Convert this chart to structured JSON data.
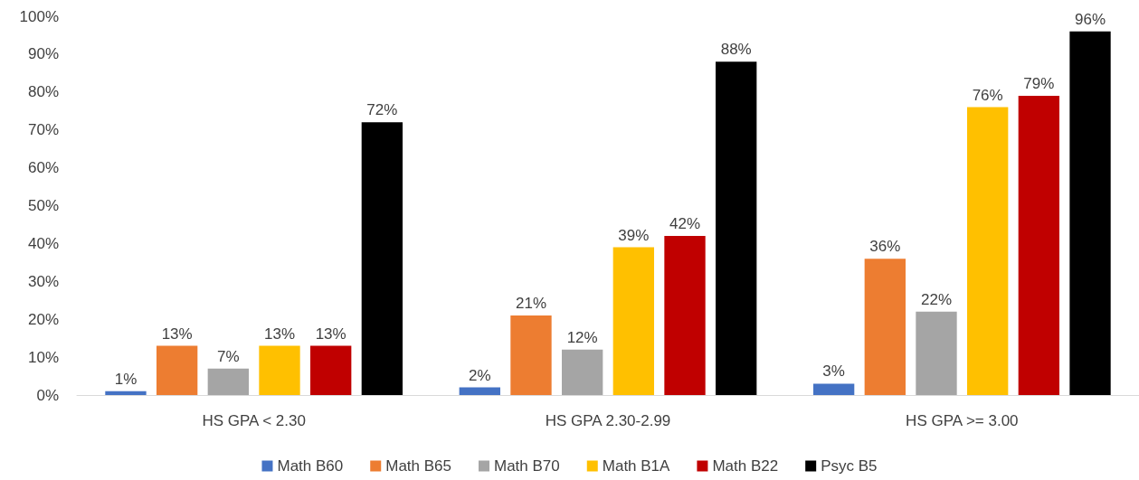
{
  "chart_data": {
    "type": "bar",
    "categories": [
      "HS GPA < 2.30",
      "HS GPA 2.30-2.99",
      "HS GPA >= 3.00"
    ],
    "series": [
      {
        "name": "Math B60",
        "color": "#4472c4",
        "values": [
          1,
          2,
          3
        ],
        "value_labels": [
          "1%",
          "2%",
          "3%"
        ]
      },
      {
        "name": "Math B65",
        "color": "#ed7d31",
        "values": [
          13,
          21,
          36
        ],
        "value_labels": [
          "13%",
          "21%",
          "36%"
        ]
      },
      {
        "name": "Math B70",
        "color": "#a5a5a5",
        "values": [
          7,
          12,
          22
        ],
        "value_labels": [
          "7%",
          "12%",
          "22%"
        ]
      },
      {
        "name": "Math B1A",
        "color": "#ffc000",
        "values": [
          13,
          39,
          76
        ],
        "value_labels": [
          "13%",
          "39%",
          "76%"
        ]
      },
      {
        "name": "Math B22",
        "color": "#c00000",
        "values": [
          13,
          42,
          79
        ],
        "value_labels": [
          "13%",
          "42%",
          "79%"
        ]
      },
      {
        "name": "Psyc B5",
        "color": "#000000",
        "values": [
          72,
          88,
          96
        ],
        "value_labels": [
          "72%",
          "88%",
          "96%"
        ]
      }
    ],
    "ylim": [
      0,
      100
    ],
    "yticks": [
      {
        "value": 0,
        "label": "0%"
      },
      {
        "value": 10,
        "label": "10%"
      },
      {
        "value": 20,
        "label": "20%"
      },
      {
        "value": 30,
        "label": "30%"
      },
      {
        "value": 40,
        "label": "40%"
      },
      {
        "value": 50,
        "label": "50%"
      },
      {
        "value": 60,
        "label": "60%"
      },
      {
        "value": 70,
        "label": "70%"
      },
      {
        "value": 80,
        "label": "80%"
      },
      {
        "value": 90,
        "label": "90%"
      },
      {
        "value": 100,
        "label": "100%"
      }
    ],
    "grid": false,
    "legend": "bottom"
  }
}
